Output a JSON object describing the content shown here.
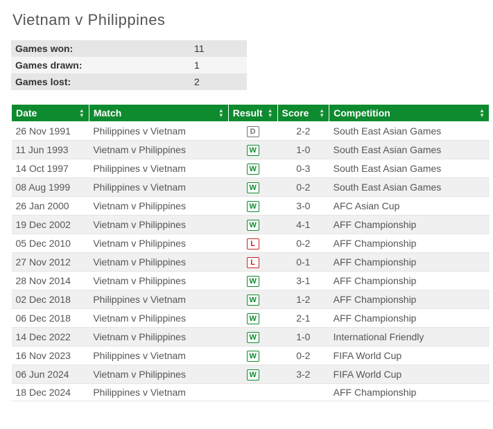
{
  "title": "Vietnam  v Philippines",
  "summary": [
    {
      "label": "Games won:",
      "value": "11"
    },
    {
      "label": "Games drawn:",
      "value": "1"
    },
    {
      "label": "Games lost:",
      "value": "2"
    }
  ],
  "columns": [
    "Date",
    "Match",
    "Result",
    "Score",
    "Competition"
  ],
  "rows": [
    {
      "date": "26 Nov 1991",
      "match": "Philippines v Vietnam",
      "result": "D",
      "score": "2-2",
      "competition": "South East Asian Games"
    },
    {
      "date": "11 Jun 1993",
      "match": "Vietnam v Philippines",
      "result": "W",
      "score": "1-0",
      "competition": "South East Asian Games"
    },
    {
      "date": "14 Oct 1997",
      "match": "Philippines v Vietnam",
      "result": "W",
      "score": "0-3",
      "competition": "South East Asian Games"
    },
    {
      "date": "08 Aug 1999",
      "match": "Philippines v Vietnam",
      "result": "W",
      "score": "0-2",
      "competition": "South East Asian Games"
    },
    {
      "date": "26 Jan 2000",
      "match": "Vietnam v Philippines",
      "result": "W",
      "score": "3-0",
      "competition": "AFC Asian Cup"
    },
    {
      "date": "19 Dec 2002",
      "match": "Vietnam v Philippines",
      "result": "W",
      "score": "4-1",
      "competition": "AFF Championship"
    },
    {
      "date": "05 Dec 2010",
      "match": "Vietnam v Philippines",
      "result": "L",
      "score": "0-2",
      "competition": "AFF Championship"
    },
    {
      "date": "27 Nov 2012",
      "match": "Vietnam v Philippines",
      "result": "L",
      "score": "0-1",
      "competition": "AFF Championship"
    },
    {
      "date": "28 Nov 2014",
      "match": "Vietnam v Philippines",
      "result": "W",
      "score": "3-1",
      "competition": "AFF Championship"
    },
    {
      "date": "02 Dec 2018",
      "match": "Philippines v Vietnam",
      "result": "W",
      "score": "1-2",
      "competition": "AFF Championship"
    },
    {
      "date": "06 Dec 2018",
      "match": "Vietnam v Philippines",
      "result": "W",
      "score": "2-1",
      "competition": "AFF Championship"
    },
    {
      "date": "14 Dec 2022",
      "match": "Vietnam v Philippines",
      "result": "W",
      "score": "1-0",
      "competition": "International Friendly"
    },
    {
      "date": "16 Nov 2023",
      "match": "Philippines v Vietnam",
      "result": "W",
      "score": "0-2",
      "competition": "FIFA World Cup"
    },
    {
      "date": "06 Jun 2024",
      "match": "Vietnam v Philippines",
      "result": "W",
      "score": "3-2",
      "competition": "FIFA World Cup"
    },
    {
      "date": "18 Dec 2024",
      "match": "Philippines v Vietnam",
      "result": "",
      "score": "",
      "competition": "AFF Championship"
    }
  ],
  "style": {
    "header_bg": "#0e8a2f",
    "header_fg": "#ffffff",
    "row_alt_bg": "#f0f0f0",
    "badge": {
      "W": {
        "color": "#0e8a2f"
      },
      "L": {
        "color": "#cc2222"
      },
      "D": {
        "color": "#777777"
      }
    }
  }
}
